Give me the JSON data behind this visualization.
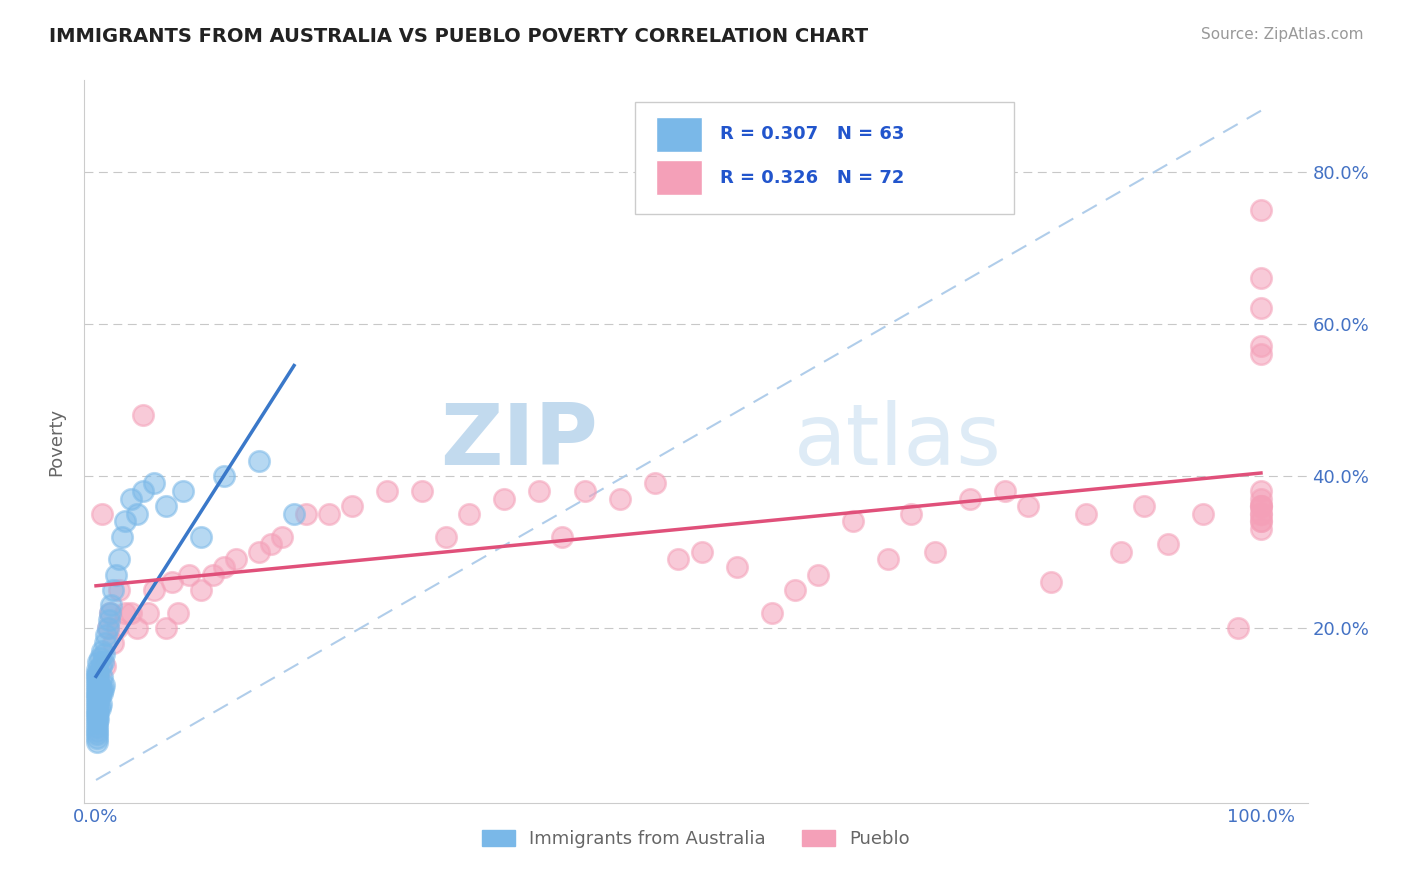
{
  "title": "IMMIGRANTS FROM AUSTRALIA VS PUEBLO POVERTY CORRELATION CHART",
  "source": "Source: ZipAtlas.com",
  "ylabel": "Poverty",
  "legend_label1": "Immigrants from Australia",
  "legend_label2": "Pueblo",
  "r1": 0.307,
  "n1": 63,
  "r2": 0.326,
  "n2": 72,
  "color1": "#7ab8e8",
  "color2": "#f4a0b8",
  "line_color1": "#3a78c9",
  "line_color2": "#e0507a",
  "diag_color": "#a8c8e8",
  "watermark_zip": "ZIP",
  "watermark_atlas": "atlas",
  "blue_x": [
    0.001,
    0.001,
    0.001,
    0.001,
    0.001,
    0.001,
    0.001,
    0.001,
    0.001,
    0.001,
    0.001,
    0.001,
    0.001,
    0.001,
    0.001,
    0.001,
    0.001,
    0.001,
    0.001,
    0.001,
    0.002,
    0.002,
    0.002,
    0.002,
    0.002,
    0.002,
    0.002,
    0.002,
    0.003,
    0.003,
    0.003,
    0.003,
    0.004,
    0.004,
    0.004,
    0.005,
    0.005,
    0.005,
    0.006,
    0.006,
    0.007,
    0.007,
    0.008,
    0.009,
    0.01,
    0.011,
    0.012,
    0.013,
    0.015,
    0.017,
    0.02,
    0.022,
    0.025,
    0.03,
    0.035,
    0.04,
    0.05,
    0.06,
    0.075,
    0.09,
    0.11,
    0.14,
    0.17
  ],
  "blue_y": [
    0.05,
    0.055,
    0.06,
    0.065,
    0.07,
    0.075,
    0.08,
    0.085,
    0.09,
    0.095,
    0.1,
    0.105,
    0.11,
    0.115,
    0.12,
    0.125,
    0.13,
    0.135,
    0.14,
    0.145,
    0.08,
    0.09,
    0.1,
    0.11,
    0.12,
    0.13,
    0.14,
    0.155,
    0.095,
    0.11,
    0.125,
    0.16,
    0.1,
    0.12,
    0.15,
    0.115,
    0.135,
    0.17,
    0.12,
    0.155,
    0.125,
    0.165,
    0.18,
    0.19,
    0.2,
    0.21,
    0.22,
    0.23,
    0.25,
    0.27,
    0.29,
    0.32,
    0.34,
    0.37,
    0.35,
    0.38,
    0.39,
    0.36,
    0.38,
    0.32,
    0.4,
    0.42,
    0.35
  ],
  "pink_x": [
    0.005,
    0.008,
    0.01,
    0.012,
    0.015,
    0.018,
    0.02,
    0.025,
    0.03,
    0.035,
    0.04,
    0.045,
    0.05,
    0.06,
    0.065,
    0.07,
    0.08,
    0.09,
    0.1,
    0.11,
    0.12,
    0.14,
    0.15,
    0.16,
    0.18,
    0.2,
    0.22,
    0.25,
    0.28,
    0.3,
    0.32,
    0.35,
    0.38,
    0.4,
    0.42,
    0.45,
    0.48,
    0.5,
    0.52,
    0.55,
    0.58,
    0.6,
    0.62,
    0.65,
    0.68,
    0.7,
    0.72,
    0.75,
    0.78,
    0.8,
    0.82,
    0.85,
    0.88,
    0.9,
    0.92,
    0.95,
    0.98,
    1.0,
    1.0,
    1.0,
    1.0,
    1.0,
    1.0,
    1.0,
    1.0,
    1.0,
    1.0,
    1.0,
    1.0,
    1.0,
    1.0,
    1.0
  ],
  "pink_y": [
    0.35,
    0.15,
    0.2,
    0.22,
    0.18,
    0.2,
    0.25,
    0.22,
    0.22,
    0.2,
    0.48,
    0.22,
    0.25,
    0.2,
    0.26,
    0.22,
    0.27,
    0.25,
    0.27,
    0.28,
    0.29,
    0.3,
    0.31,
    0.32,
    0.35,
    0.35,
    0.36,
    0.38,
    0.38,
    0.32,
    0.35,
    0.37,
    0.38,
    0.32,
    0.38,
    0.37,
    0.39,
    0.29,
    0.3,
    0.28,
    0.22,
    0.25,
    0.27,
    0.34,
    0.29,
    0.35,
    0.3,
    0.37,
    0.38,
    0.36,
    0.26,
    0.35,
    0.3,
    0.36,
    0.31,
    0.35,
    0.2,
    0.34,
    0.34,
    0.37,
    0.36,
    0.33,
    0.36,
    0.38,
    0.36,
    0.35,
    0.35,
    0.75,
    0.57,
    0.62,
    0.66,
    0.56
  ]
}
